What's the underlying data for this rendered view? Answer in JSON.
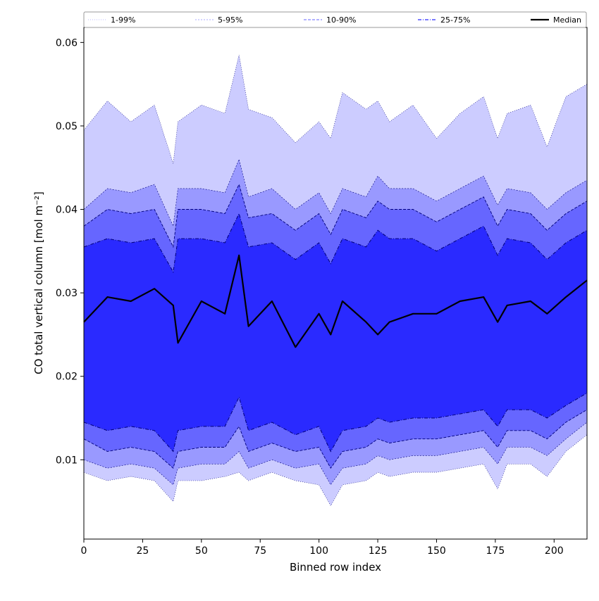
{
  "chart_data": {
    "type": "area",
    "title": "",
    "xlabel": "Binned row index",
    "ylabel": "CO total vertical column [mol m⁻²]",
    "xlim": [
      0,
      214
    ],
    "ylim": [
      0.0005,
      0.0618
    ],
    "x_ticks": [
      0,
      25,
      50,
      75,
      100,
      125,
      150,
      175,
      200
    ],
    "x_tick_labels": [
      "0",
      "25",
      "50",
      "75",
      "100",
      "125",
      "150",
      "175",
      "200"
    ],
    "y_ticks": [
      0.01,
      0.02,
      0.03,
      0.04,
      0.05,
      0.06
    ],
    "y_tick_labels": [
      "0.01",
      "0.02",
      "0.03",
      "0.04",
      "0.05",
      "0.06"
    ],
    "grid": false,
    "legend_position": "top",
    "legend": [
      {
        "label": "1-99%",
        "style": "dotted-thin"
      },
      {
        "label": "5-95%",
        "style": "dashed-thin"
      },
      {
        "label": "10-90%",
        "style": "dashed"
      },
      {
        "label": "25-75%",
        "style": "dashdot"
      },
      {
        "label": "Median",
        "style": "solid-bold"
      }
    ],
    "colors": {
      "band_1_99": "#ccccff",
      "band_5_95": "#9999ff",
      "band_10_90": "#6666ff",
      "band_25_75": "#2a2aff",
      "percentile_edge": "#00007a",
      "median": "#000000"
    },
    "x": [
      0,
      10,
      20,
      30,
      38,
      40,
      50,
      60,
      66,
      70,
      80,
      90,
      100,
      105,
      110,
      120,
      125,
      130,
      140,
      150,
      160,
      170,
      176,
      180,
      190,
      197,
      205,
      214
    ],
    "series": [
      {
        "name": "1-99%",
        "lower": [
          0.0085,
          0.0075,
          0.008,
          0.0075,
          0.005,
          0.0075,
          0.0075,
          0.008,
          0.0085,
          0.0075,
          0.0085,
          0.0075,
          0.007,
          0.0045,
          0.007,
          0.0075,
          0.0085,
          0.008,
          0.0085,
          0.0085,
          0.009,
          0.0095,
          0.0065,
          0.0095,
          0.0095,
          0.008,
          0.011,
          0.013
        ],
        "upper": [
          0.0495,
          0.053,
          0.0505,
          0.0525,
          0.0455,
          0.0505,
          0.0525,
          0.0515,
          0.0585,
          0.052,
          0.051,
          0.048,
          0.0505,
          0.0485,
          0.054,
          0.052,
          0.053,
          0.0505,
          0.0525,
          0.0485,
          0.0515,
          0.0535,
          0.0485,
          0.0515,
          0.0525,
          0.0475,
          0.0535,
          0.055
        ]
      },
      {
        "name": "5-95%",
        "lower": [
          0.01,
          0.009,
          0.0095,
          0.009,
          0.007,
          0.009,
          0.0095,
          0.0095,
          0.011,
          0.009,
          0.01,
          0.009,
          0.0095,
          0.007,
          0.009,
          0.0095,
          0.0105,
          0.01,
          0.0105,
          0.0105,
          0.011,
          0.0115,
          0.0095,
          0.0115,
          0.0115,
          0.0105,
          0.0125,
          0.0145
        ],
        "upper": [
          0.04,
          0.0425,
          0.042,
          0.043,
          0.038,
          0.0425,
          0.0425,
          0.042,
          0.046,
          0.0415,
          0.0425,
          0.04,
          0.042,
          0.0395,
          0.0425,
          0.0415,
          0.044,
          0.0425,
          0.0425,
          0.041,
          0.0425,
          0.044,
          0.0405,
          0.0425,
          0.042,
          0.04,
          0.042,
          0.0435
        ]
      },
      {
        "name": "10-90%",
        "lower": [
          0.0125,
          0.011,
          0.0115,
          0.011,
          0.009,
          0.011,
          0.0115,
          0.0115,
          0.014,
          0.011,
          0.012,
          0.011,
          0.0115,
          0.009,
          0.011,
          0.0115,
          0.0125,
          0.012,
          0.0125,
          0.0125,
          0.013,
          0.0135,
          0.0115,
          0.0135,
          0.0135,
          0.0125,
          0.0145,
          0.016
        ],
        "upper": [
          0.038,
          0.04,
          0.0395,
          0.04,
          0.0355,
          0.04,
          0.04,
          0.0395,
          0.043,
          0.039,
          0.0395,
          0.0375,
          0.0395,
          0.037,
          0.04,
          0.039,
          0.041,
          0.04,
          0.04,
          0.0385,
          0.04,
          0.0415,
          0.038,
          0.04,
          0.0395,
          0.0375,
          0.0395,
          0.041
        ]
      },
      {
        "name": "25-75%",
        "lower": [
          0.0145,
          0.0135,
          0.014,
          0.0135,
          0.011,
          0.0135,
          0.014,
          0.014,
          0.0175,
          0.0135,
          0.0145,
          0.013,
          0.014,
          0.011,
          0.0135,
          0.014,
          0.015,
          0.0145,
          0.015,
          0.015,
          0.0155,
          0.016,
          0.014,
          0.016,
          0.016,
          0.015,
          0.0165,
          0.018
        ],
        "upper": [
          0.0355,
          0.0365,
          0.036,
          0.0365,
          0.0325,
          0.0365,
          0.0365,
          0.036,
          0.0395,
          0.0355,
          0.036,
          0.034,
          0.036,
          0.0335,
          0.0365,
          0.0355,
          0.0375,
          0.0365,
          0.0365,
          0.035,
          0.0365,
          0.038,
          0.0345,
          0.0365,
          0.036,
          0.034,
          0.036,
          0.0375
        ]
      },
      {
        "name": "Median",
        "values": [
          0.0265,
          0.0295,
          0.029,
          0.0305,
          0.0285,
          0.024,
          0.029,
          0.0275,
          0.0345,
          0.026,
          0.029,
          0.0235,
          0.0275,
          0.025,
          0.029,
          0.0265,
          0.025,
          0.0265,
          0.0275,
          0.0275,
          0.029,
          0.0295,
          0.0265,
          0.0285,
          0.029,
          0.0275,
          0.0295,
          0.0315
        ]
      }
    ]
  }
}
